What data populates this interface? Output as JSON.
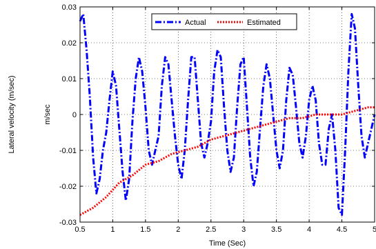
{
  "chart_data": {
    "type": "line",
    "title": "",
    "xlabel": "Time (Sec)",
    "ylabel": "m/sec",
    "outer_ylabel": "Lateral velocity (m/sec)",
    "xlim": [
      0.5,
      5
    ],
    "ylim": [
      -0.03,
      0.03
    ],
    "x_ticks": [
      0.5,
      1,
      1.5,
      2,
      2.5,
      3,
      3.5,
      4,
      4.5,
      5
    ],
    "x_tick_labels": [
      "0.5",
      "1",
      "1.5",
      "2",
      "2.5",
      "3",
      "3.5",
      "4",
      "4.5",
      "5"
    ],
    "y_ticks": [
      -0.03,
      -0.02,
      -0.01,
      0,
      0.01,
      0.02,
      0.03
    ],
    "y_tick_labels": [
      "-0.03",
      "-0.02",
      "-0.01",
      "0",
      "0.01",
      "0.02",
      "0.03"
    ],
    "grid": true,
    "legend_position": "top-center",
    "series": [
      {
        "name": "Actual",
        "color": "#0000ff",
        "style": "dash-dot",
        "x": [
          0.5,
          0.55,
          0.6,
          0.65,
          0.7,
          0.75,
          0.8,
          0.85,
          0.9,
          0.95,
          1.0,
          1.05,
          1.1,
          1.15,
          1.2,
          1.25,
          1.3,
          1.35,
          1.4,
          1.45,
          1.5,
          1.55,
          1.6,
          1.65,
          1.7,
          1.75,
          1.8,
          1.85,
          1.9,
          1.95,
          2.0,
          2.05,
          2.1,
          2.15,
          2.2,
          2.25,
          2.3,
          2.35,
          2.4,
          2.45,
          2.5,
          2.55,
          2.6,
          2.65,
          2.7,
          2.75,
          2.8,
          2.85,
          2.9,
          2.95,
          3.0,
          3.05,
          3.1,
          3.15,
          3.2,
          3.25,
          3.3,
          3.35,
          3.4,
          3.45,
          3.5,
          3.55,
          3.6,
          3.65,
          3.7,
          3.75,
          3.8,
          3.85,
          3.9,
          3.95,
          4.0,
          4.05,
          4.1,
          4.15,
          4.2,
          4.25,
          4.3,
          4.35,
          4.4,
          4.45,
          4.5,
          4.55,
          4.6,
          4.65,
          4.7,
          4.75,
          4.8,
          4.85,
          4.9,
          4.95,
          5.0
        ],
        "values": [
          0.026,
          0.028,
          0.018,
          0.005,
          -0.012,
          -0.022,
          -0.018,
          -0.01,
          -0.005,
          0.004,
          0.012,
          0.008,
          -0.004,
          -0.016,
          -0.024,
          -0.018,
          -0.002,
          0.01,
          0.016,
          0.012,
          0.002,
          -0.01,
          -0.014,
          -0.01,
          -0.006,
          0.008,
          0.016,
          0.014,
          0.004,
          -0.006,
          -0.014,
          -0.018,
          -0.01,
          0.004,
          0.016,
          0.016,
          0.004,
          -0.008,
          -0.012,
          -0.008,
          -0.002,
          0.012,
          0.018,
          0.016,
          0.002,
          -0.01,
          -0.016,
          -0.012,
          0.002,
          0.014,
          0.016,
          0.002,
          -0.012,
          -0.02,
          -0.016,
          -0.004,
          0.008,
          0.014,
          0.01,
          0.0,
          -0.01,
          -0.015,
          -0.01,
          0.004,
          0.013,
          0.011,
          0.002,
          -0.008,
          -0.012,
          -0.006,
          0.004,
          0.008,
          0.004,
          -0.008,
          -0.014,
          -0.014,
          -0.004,
          0.0,
          -0.01,
          -0.026,
          -0.028,
          -0.01,
          0.012,
          0.028,
          0.024,
          0.008,
          -0.006,
          -0.012,
          -0.008,
          -0.004,
          0.0
        ]
      },
      {
        "name": "Estimated",
        "color": "#ff0000",
        "style": "dotted",
        "x": [
          0.5,
          0.7,
          0.9,
          1.1,
          1.3,
          1.5,
          1.7,
          1.9,
          2.1,
          2.3,
          2.5,
          2.7,
          2.9,
          3.1,
          3.3,
          3.5,
          3.7,
          3.9,
          4.1,
          4.3,
          4.5,
          4.7,
          4.9,
          5.0
        ],
        "values": [
          -0.028,
          -0.026,
          -0.023,
          -0.019,
          -0.017,
          -0.014,
          -0.013,
          -0.011,
          -0.01,
          -0.009,
          -0.007,
          -0.006,
          -0.005,
          -0.004,
          -0.003,
          -0.002,
          -0.001,
          -0.001,
          0.0,
          0.0,
          0.0,
          0.001,
          0.002,
          0.002
        ]
      }
    ]
  }
}
